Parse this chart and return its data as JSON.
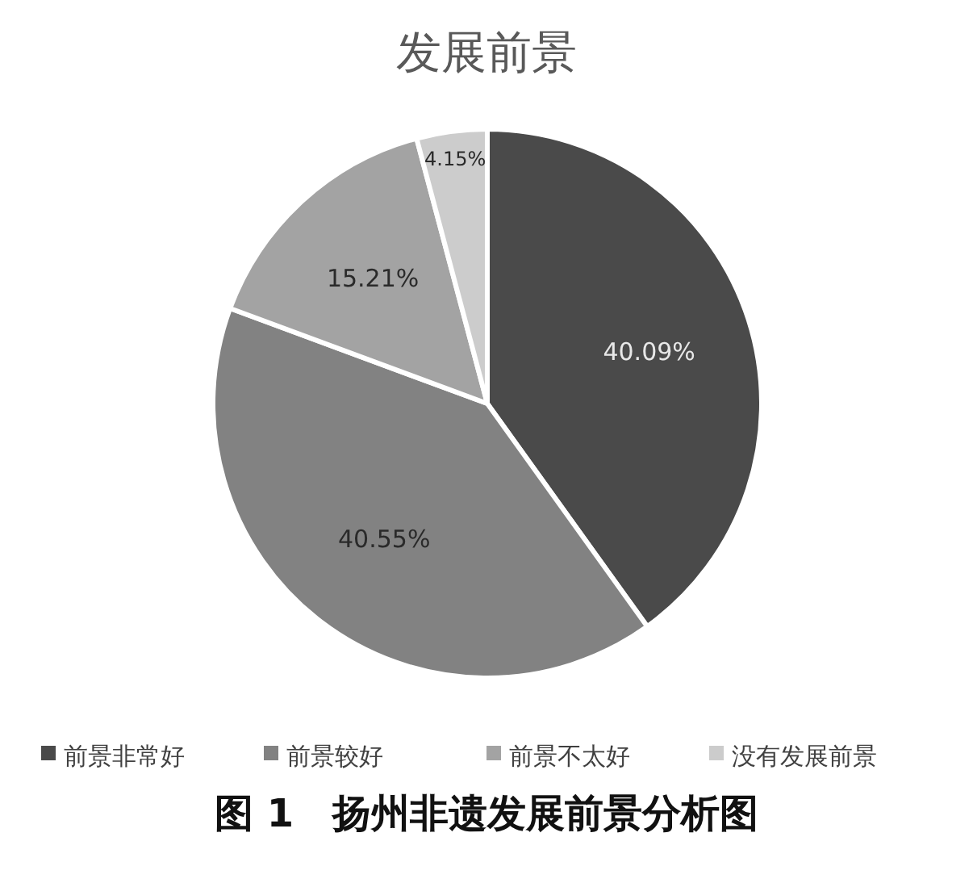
{
  "chart_data": {
    "type": "pie",
    "title": "发展前景",
    "categories": [
      "前景非常好",
      "前景较好",
      "前景不太好",
      "没有发展前景"
    ],
    "values": [
      40.09,
      40.55,
      15.21,
      4.15
    ],
    "colors": [
      "#4a4a4a",
      "#828282",
      "#a3a3a3",
      "#cccccc"
    ],
    "value_labels": [
      "40.09%",
      "40.55%",
      "15.21%",
      "4.15%"
    ],
    "legend": "bottom",
    "annotations": [
      "图 1　扬州非遗发展前景分析图"
    ]
  }
}
